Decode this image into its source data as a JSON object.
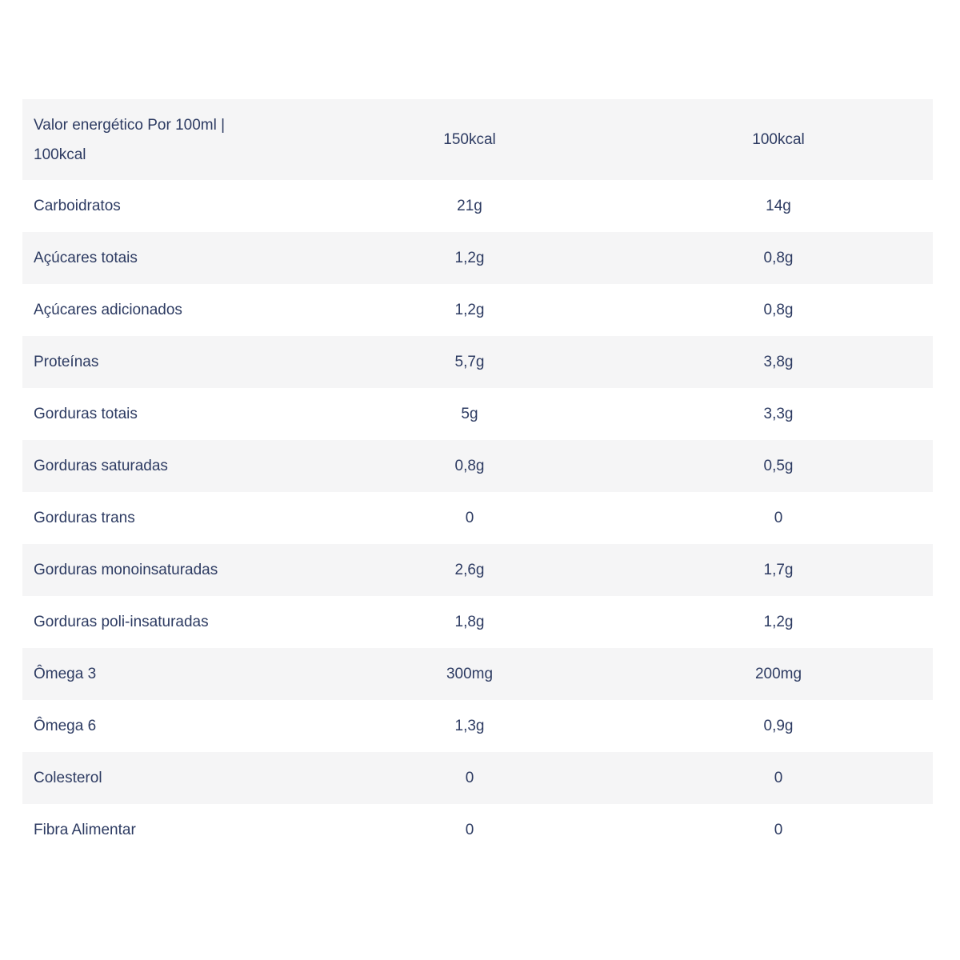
{
  "page": {
    "background_color": "#ffffff"
  },
  "table": {
    "text_color": "#2d3b62",
    "stripe_color": "#f5f5f6",
    "header": {
      "label": "Valor energético Por 100ml | 100kcal",
      "col_150": "150kcal",
      "col_100": "100kcal"
    },
    "rows": [
      {
        "label": "Carboidratos",
        "per_150kcal": "21g",
        "per_100kcal": "14g"
      },
      {
        "label": "Açúcares totais",
        "per_150kcal": "1,2g",
        "per_100kcal": "0,8g"
      },
      {
        "label": "Açúcares adicionados",
        "per_150kcal": "1,2g",
        "per_100kcal": "0,8g"
      },
      {
        "label": "Proteínas",
        "per_150kcal": "5,7g",
        "per_100kcal": "3,8g"
      },
      {
        "label": "Gorduras totais",
        "per_150kcal": "5g",
        "per_100kcal": "3,3g"
      },
      {
        "label": "Gorduras saturadas",
        "per_150kcal": "0,8g",
        "per_100kcal": "0,5g"
      },
      {
        "label": "Gorduras trans",
        "per_150kcal": "0",
        "per_100kcal": "0"
      },
      {
        "label": "Gorduras monoinsaturadas",
        "per_150kcal": "2,6g",
        "per_100kcal": "1,7g"
      },
      {
        "label": "Gorduras poli-insaturadas",
        "per_150kcal": "1,8g",
        "per_100kcal": "1,2g"
      },
      {
        "label": "Ômega 3",
        "per_150kcal": "300mg",
        "per_100kcal": "200mg"
      },
      {
        "label": "Ômega 6",
        "per_150kcal": "1,3g",
        "per_100kcal": "0,9g"
      },
      {
        "label": "Colesterol",
        "per_150kcal": "0",
        "per_100kcal": "0"
      },
      {
        "label": "Fibra Alimentar",
        "per_150kcal": "0",
        "per_100kcal": "0"
      }
    ]
  }
}
